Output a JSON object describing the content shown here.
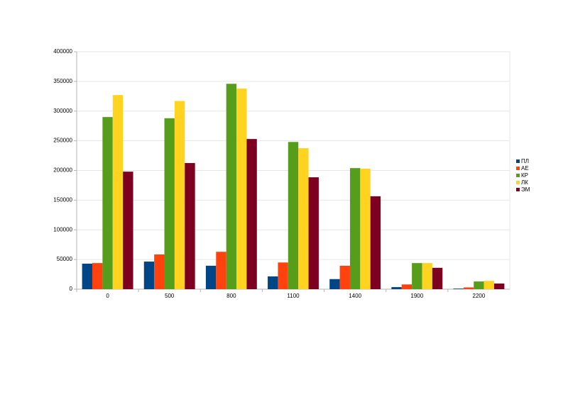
{
  "chart_data": {
    "type": "bar",
    "categories": [
      "0",
      "500",
      "800",
      "1100",
      "1400",
      "1900",
      "2200"
    ],
    "series": [
      {
        "name": "ПЛ",
        "color": "#004586",
        "values": [
          43000,
          46500,
          39500,
          21500,
          17000,
          3500,
          1000
        ]
      },
      {
        "name": "АЕ",
        "color": "#ff420e",
        "values": [
          44000,
          58500,
          63000,
          45000,
          39500,
          8000,
          3000
        ]
      },
      {
        "name": "КР",
        "color": "#579d1c",
        "values": [
          290000,
          288000,
          346000,
          248000,
          204000,
          44000,
          13000
        ]
      },
      {
        "name": "ЛК",
        "color": "#ffd320",
        "values": [
          327000,
          317000,
          338000,
          237500,
          203000,
          44000,
          14000
        ]
      },
      {
        "name": "ЭМ",
        "color": "#7e0021",
        "values": [
          198000,
          212500,
          253000,
          188500,
          156500,
          36000,
          9500
        ]
      }
    ],
    "ylim": [
      0,
      400000
    ],
    "yticks": [
      0,
      50000,
      100000,
      150000,
      200000,
      250000,
      300000,
      350000,
      400000
    ],
    "grid": true,
    "legend": "right"
  }
}
